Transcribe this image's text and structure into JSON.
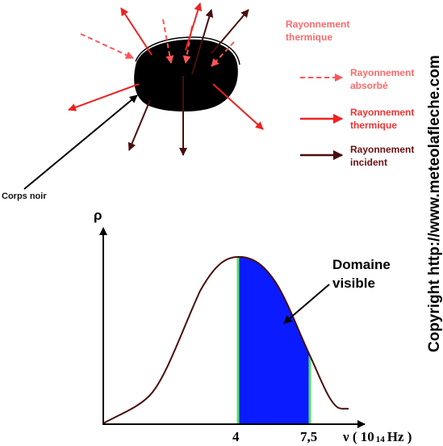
{
  "legend": {
    "title": "Rayonnement thermique",
    "absorbed": "Rayonnement absorbé",
    "thermal": "Rayonnement thermique",
    "incident": "Rayonnement incident"
  },
  "body_label": "Corps noir",
  "graph": {
    "y_label": "ρ",
    "x_label": "ν ( 10 14 Hz )",
    "tick_4": "4",
    "tick_7_5": "7,5",
    "visible_label": "Domaine visible"
  },
  "copyright": "Copyright http://www.meteolafleche.com",
  "colors": {
    "thermal": "#ee2222",
    "absorbed": "#ff6a6a",
    "incident": "#4a0d0d",
    "visible_fill": "#0a1bff",
    "visible_edge": "#55dd66",
    "curve": "#4a0d0d"
  }
}
